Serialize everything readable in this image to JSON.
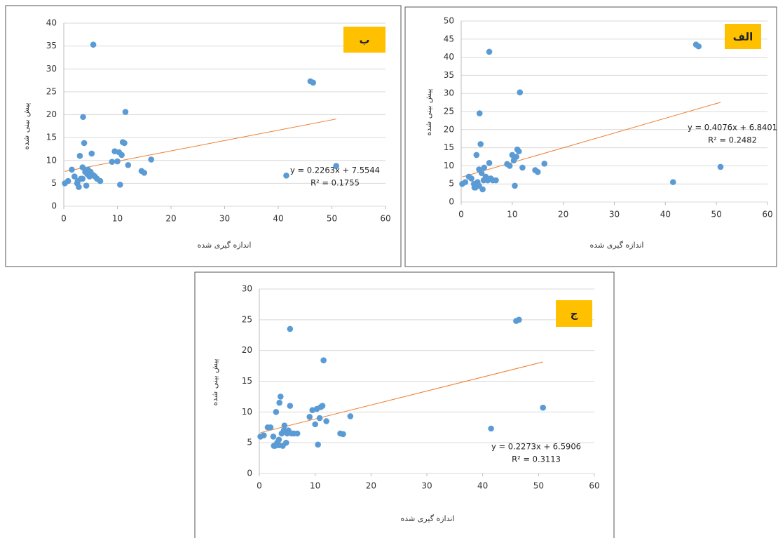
{
  "chart_data": [
    {
      "type": "scatter",
      "label": "ب",
      "xlabel": "اندازه گیری شده",
      "ylabel": "پیش بینی شده",
      "equation": "y = 0.2263x + 7.5544",
      "r2": "R² = 0.1755",
      "trendline": {
        "slope": 0.2263,
        "intercept": 7.5544,
        "color": "#ED7D31"
      },
      "color": "#5B9BD5",
      "xlim": [
        0,
        60
      ],
      "xticks": [
        0,
        10,
        20,
        30,
        40,
        50,
        60
      ],
      "ylim": [
        0,
        40
      ],
      "yticks": [
        0,
        5,
        10,
        15,
        20,
        25,
        30,
        35,
        40
      ],
      "grid": true,
      "x": [
        0.2,
        0.8,
        1.5,
        2,
        2.5,
        2.8,
        3,
        3.2,
        3.5,
        3.6,
        3.8,
        4,
        4.2,
        4.5,
        4.8,
        5,
        5.2,
        5.5,
        5.8,
        6.2,
        6.8,
        9,
        9.5,
        10,
        10.3,
        10.5,
        10.8,
        11,
        11.3,
        11.5,
        12,
        14.5,
        15,
        16.3,
        41.5,
        46,
        46.5,
        50.8,
        5.5,
        3.5,
        2.6,
        4.4
      ],
      "y": [
        5,
        5.5,
        8,
        6.5,
        5,
        4.2,
        11,
        6,
        8.5,
        19.5,
        13.8,
        7.5,
        4.5,
        8,
        6.5,
        7.5,
        11.5,
        35.3,
        6.5,
        6,
        5.5,
        9.7,
        12,
        9.8,
        11.8,
        4.7,
        11.2,
        14,
        13.8,
        20.6,
        9,
        7.7,
        7.3,
        10.2,
        6.7,
        27.3,
        27,
        8.8,
        6.8,
        6,
        5.5,
        7
      ]
    },
    {
      "type": "scatter",
      "label": "الف",
      "xlabel": "اندازه گیری شده",
      "ylabel": "پیش بینی شده",
      "equation": "y = 0.4076x + 6.8401",
      "r2": "R² = 0.2482",
      "trendline": {
        "slope": 0.4076,
        "intercept": 6.8401,
        "color": "#ED7D31"
      },
      "color": "#5B9BD5",
      "xlim": [
        0,
        60
      ],
      "xticks": [
        0,
        10,
        20,
        30,
        40,
        50,
        60
      ],
      "ylim": [
        0,
        50
      ],
      "yticks": [
        0,
        5,
        10,
        15,
        20,
        25,
        30,
        35,
        40,
        45,
        50
      ],
      "grid": true,
      "x": [
        0.2,
        0.8,
        1.5,
        2,
        2.5,
        2.8,
        3,
        3.2,
        3.5,
        3.6,
        3.8,
        4,
        4.2,
        4.5,
        4.8,
        5,
        5.2,
        5.5,
        5.8,
        6.2,
        6.8,
        9,
        9.5,
        10,
        10.3,
        10.5,
        10.8,
        11,
        11.3,
        11.5,
        12,
        14.5,
        15,
        16.3,
        41.5,
        46,
        46.5,
        50.8,
        5.5,
        3.5,
        2.6,
        4.4
      ],
      "y": [
        5,
        5.5,
        7,
        6.5,
        5,
        4,
        13,
        5.5,
        9,
        24.5,
        16,
        8,
        3.5,
        9.5,
        7,
        6.5,
        6,
        41.5,
        6.5,
        6,
        6,
        10.5,
        10,
        13,
        11.5,
        4.5,
        12.5,
        14.5,
        14,
        30.3,
        9.5,
        8.8,
        8.3,
        10.6,
        5.5,
        43.5,
        43,
        9.7,
        10.8,
        4.5,
        4,
        6
      ]
    },
    {
      "type": "scatter",
      "label": "ج",
      "xlabel": "اندازه گیری شده",
      "ylabel": "پیش بینی شده",
      "equation": "y = 0.2273x + 6.5906",
      "r2": "R² = 0.3113",
      "trendline": {
        "slope": 0.2273,
        "intercept": 6.5906,
        "color": "#ED7D31"
      },
      "color": "#5B9BD5",
      "xlim": [
        0,
        60
      ],
      "xticks": [
        0,
        10,
        20,
        30,
        40,
        50,
        60
      ],
      "ylim": [
        0,
        30
      ],
      "yticks": [
        0,
        5,
        10,
        15,
        20,
        25,
        30
      ],
      "grid": true,
      "x": [
        0.2,
        0.8,
        1.5,
        2,
        2.5,
        2.8,
        3,
        3.2,
        3.5,
        3.6,
        3.8,
        4,
        4.2,
        4.5,
        4.8,
        5,
        5.2,
        5.5,
        5.8,
        6.2,
        6.8,
        9,
        9.5,
        10,
        10.3,
        10.5,
        10.8,
        11,
        11.3,
        11.5,
        12,
        14.5,
        15,
        16.3,
        41.5,
        46,
        46.5,
        50.8,
        5.5,
        3.5,
        2.6,
        4.4
      ],
      "y": [
        6,
        6.2,
        7.5,
        7.5,
        6,
        4.5,
        10,
        5,
        5.5,
        11.5,
        12.5,
        6.5,
        4.5,
        7.8,
        5,
        6.5,
        7,
        11,
        6.5,
        6.5,
        6.5,
        9.2,
        10.3,
        8,
        10.5,
        4.7,
        9,
        10.8,
        11,
        18.4,
        8.5,
        6.5,
        6.4,
        9.3,
        7.3,
        24.8,
        25,
        10.7,
        23.5,
        4.6,
        4.5,
        7
      ]
    }
  ]
}
